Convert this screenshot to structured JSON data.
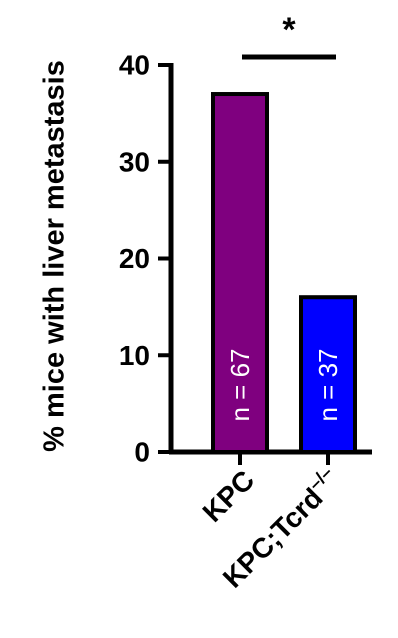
{
  "chart_data": {
    "type": "bar",
    "categories": [
      "KPC",
      "KPC;Tcrd"
    ],
    "category_superscripts": [
      "",
      "–/–"
    ],
    "values": [
      37,
      16
    ],
    "bar_labels": [
      "n = 67",
      "n = 37"
    ],
    "colors": [
      "#7f007f",
      "#0000ff"
    ],
    "ylabel": "% mice with liver metastasis",
    "yticks": [
      "0",
      "10",
      "20",
      "30",
      "40"
    ],
    "ylim": [
      0,
      40
    ],
    "significance": {
      "between": [
        0,
        1
      ],
      "label": "*"
    },
    "grid": false
  }
}
